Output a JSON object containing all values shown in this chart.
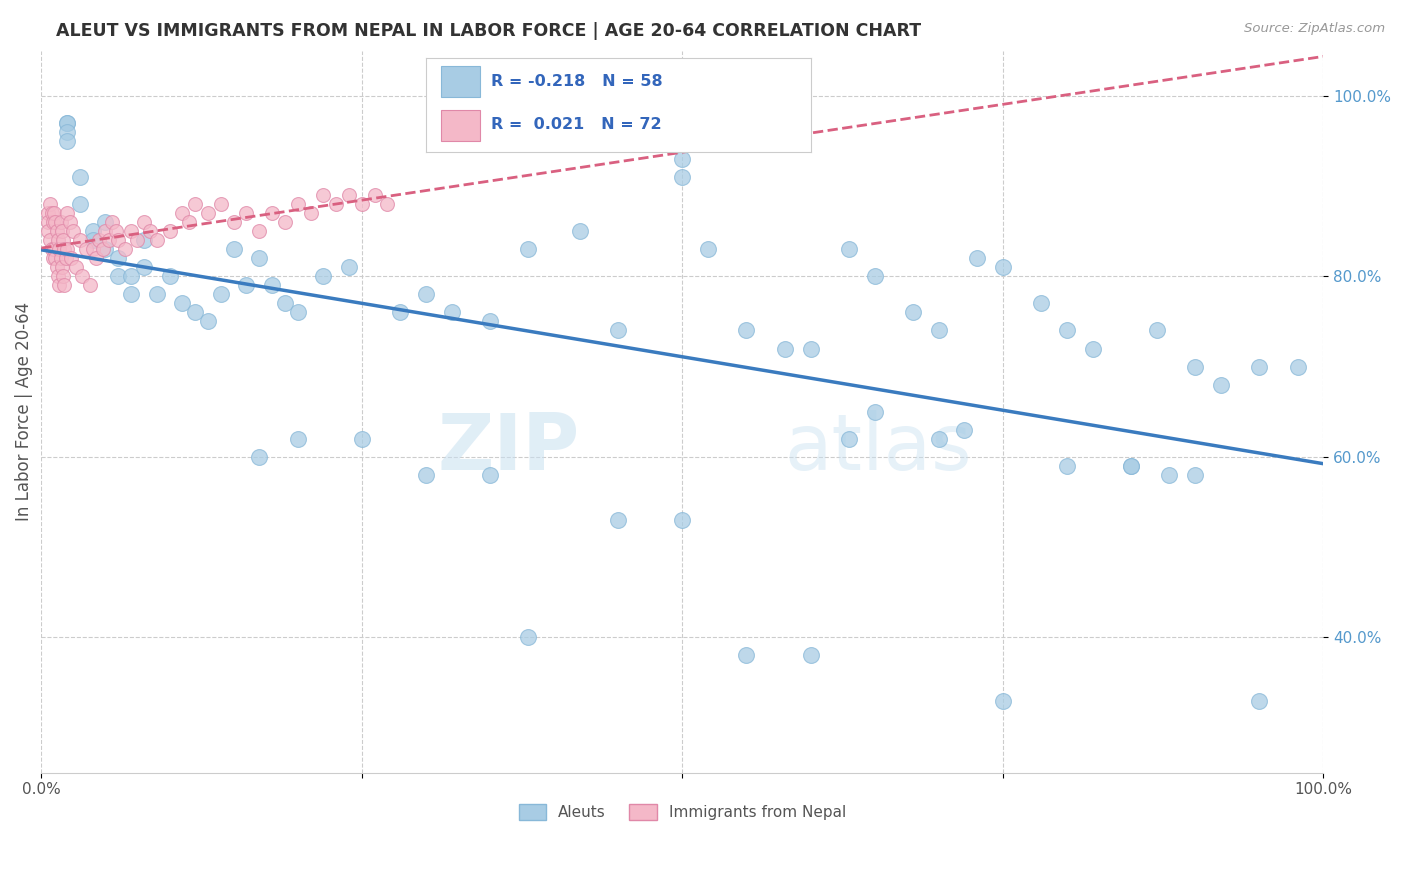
{
  "title": "ALEUT VS IMMIGRANTS FROM NEPAL IN LABOR FORCE | AGE 20-64 CORRELATION CHART",
  "source": "Source: ZipAtlas.com",
  "ylabel": "In Labor Force | Age 20-64",
  "watermark": "ZIPatlas",
  "legend_blue_R": "-0.218",
  "legend_blue_N": "58",
  "legend_pink_R": "0.021",
  "legend_pink_N": "72",
  "xlim": [
    0.0,
    1.0
  ],
  "ylim": [
    0.25,
    1.05
  ],
  "yticks": [
    0.4,
    0.6,
    0.8,
    1.0
  ],
  "blue_color": "#a8cce4",
  "pink_color": "#f4b8c8",
  "blue_line_color": "#3a7bbf",
  "pink_line_color": "#d96080",
  "grid_color": "#cccccc",
  "background_color": "#ffffff",
  "blue_scatter_x": [
    0.02,
    0.02,
    0.02,
    0.02,
    0.03,
    0.03,
    0.04,
    0.04,
    0.05,
    0.05,
    0.06,
    0.06,
    0.07,
    0.07,
    0.08,
    0.08,
    0.09,
    0.1,
    0.11,
    0.12,
    0.13,
    0.14,
    0.15,
    0.16,
    0.17,
    0.18,
    0.19,
    0.2,
    0.22,
    0.24,
    0.28,
    0.3,
    0.32,
    0.35,
    0.38,
    0.42,
    0.45,
    0.5,
    0.5,
    0.52,
    0.55,
    0.58,
    0.6,
    0.63,
    0.65,
    0.68,
    0.7,
    0.73,
    0.75,
    0.78,
    0.8,
    0.82,
    0.85,
    0.87,
    0.9,
    0.92,
    0.95,
    0.98
  ],
  "blue_scatter_y": [
    0.97,
    0.97,
    0.96,
    0.95,
    0.91,
    0.88,
    0.85,
    0.84,
    0.86,
    0.83,
    0.82,
    0.8,
    0.8,
    0.78,
    0.84,
    0.81,
    0.78,
    0.8,
    0.77,
    0.76,
    0.75,
    0.78,
    0.83,
    0.79,
    0.82,
    0.79,
    0.77,
    0.76,
    0.8,
    0.81,
    0.76,
    0.78,
    0.76,
    0.75,
    0.83,
    0.85,
    0.74,
    0.93,
    0.91,
    0.83,
    0.74,
    0.72,
    0.72,
    0.83,
    0.8,
    0.76,
    0.74,
    0.82,
    0.81,
    0.77,
    0.74,
    0.72,
    0.59,
    0.74,
    0.7,
    0.68,
    0.7,
    0.7
  ],
  "blue_scatter_x2": [
    0.17,
    0.2,
    0.25,
    0.3,
    0.35,
    0.38,
    0.45,
    0.5,
    0.55,
    0.6,
    0.63,
    0.65,
    0.7,
    0.72,
    0.75,
    0.8,
    0.85,
    0.88,
    0.9,
    0.95
  ],
  "blue_scatter_y2": [
    0.6,
    0.62,
    0.62,
    0.58,
    0.58,
    0.4,
    0.53,
    0.53,
    0.38,
    0.38,
    0.62,
    0.65,
    0.62,
    0.63,
    0.33,
    0.59,
    0.59,
    0.58,
    0.58,
    0.33
  ],
  "pink_scatter_x": [
    0.005,
    0.005,
    0.005,
    0.007,
    0.007,
    0.008,
    0.008,
    0.009,
    0.009,
    0.01,
    0.01,
    0.011,
    0.011,
    0.012,
    0.012,
    0.013,
    0.013,
    0.014,
    0.014,
    0.015,
    0.015,
    0.016,
    0.016,
    0.017,
    0.017,
    0.018,
    0.018,
    0.019,
    0.02,
    0.02,
    0.022,
    0.023,
    0.025,
    0.027,
    0.03,
    0.032,
    0.035,
    0.038,
    0.04,
    0.043,
    0.045,
    0.048,
    0.05,
    0.053,
    0.055,
    0.058,
    0.06,
    0.065,
    0.07,
    0.075,
    0.08,
    0.085,
    0.09,
    0.1,
    0.11,
    0.115,
    0.12,
    0.13,
    0.14,
    0.15,
    0.16,
    0.17,
    0.18,
    0.19,
    0.2,
    0.21,
    0.22,
    0.23,
    0.24,
    0.25,
    0.26,
    0.27
  ],
  "pink_scatter_y": [
    0.87,
    0.86,
    0.85,
    0.88,
    0.84,
    0.87,
    0.83,
    0.86,
    0.82,
    0.87,
    0.83,
    0.86,
    0.82,
    0.85,
    0.81,
    0.84,
    0.8,
    0.83,
    0.79,
    0.86,
    0.82,
    0.85,
    0.81,
    0.84,
    0.8,
    0.83,
    0.79,
    0.82,
    0.87,
    0.83,
    0.86,
    0.82,
    0.85,
    0.81,
    0.84,
    0.8,
    0.83,
    0.79,
    0.83,
    0.82,
    0.84,
    0.83,
    0.85,
    0.84,
    0.86,
    0.85,
    0.84,
    0.83,
    0.85,
    0.84,
    0.86,
    0.85,
    0.84,
    0.85,
    0.87,
    0.86,
    0.88,
    0.87,
    0.88,
    0.86,
    0.87,
    0.85,
    0.87,
    0.86,
    0.88,
    0.87,
    0.89,
    0.88,
    0.89,
    0.88,
    0.89,
    0.88
  ]
}
